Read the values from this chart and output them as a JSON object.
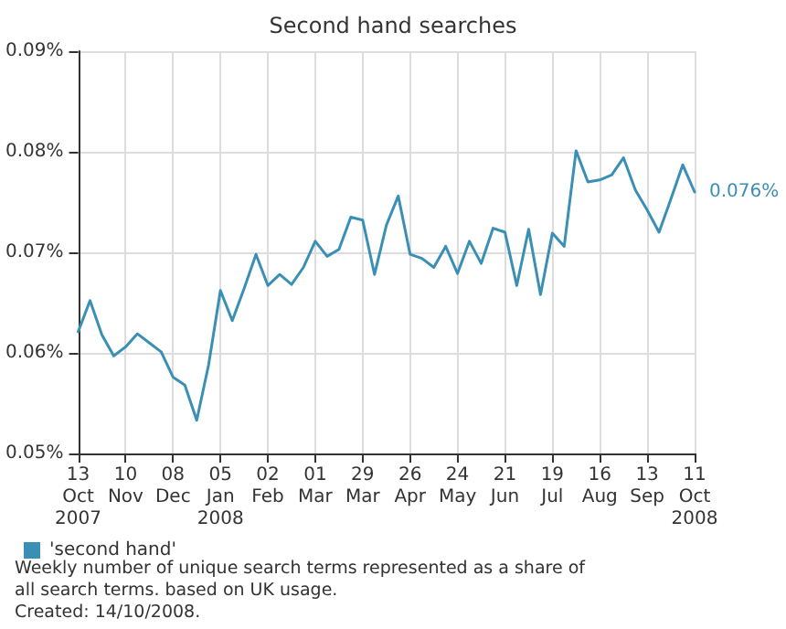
{
  "chart_data": {
    "type": "line",
    "title": "Second hand searches",
    "categories": [
      "13\nOct\n2007",
      null,
      null,
      null,
      "10\nNov",
      null,
      null,
      null,
      "08\nDec",
      null,
      null,
      null,
      "05\nJan\n2008",
      null,
      null,
      null,
      "02\nFeb",
      null,
      null,
      null,
      "01\nMar",
      null,
      null,
      null,
      "29\nMar",
      null,
      null,
      null,
      "26\nApr",
      null,
      null,
      null,
      "24\nMay",
      null,
      null,
      null,
      "21\nJun",
      null,
      null,
      null,
      "19\nJul",
      null,
      null,
      null,
      "16\nAug",
      null,
      null,
      null,
      "13\nSep",
      null,
      null,
      null,
      "11\nOct\n2008"
    ],
    "series": [
      {
        "name": "'second hand'",
        "color": "#3a8fb5",
        "values": [
          0.0621,
          0.0652,
          0.0618,
          0.0597,
          0.0606,
          0.0619,
          0.061,
          0.0601,
          0.0576,
          0.0568,
          0.0533,
          0.0588,
          0.0662,
          0.0632,
          0.0664,
          0.0698,
          0.0667,
          0.0678,
          0.0668,
          0.0685,
          0.0711,
          0.0696,
          0.0703,
          0.0735,
          0.0732,
          0.0678,
          0.0727,
          0.0756,
          0.0698,
          0.0694,
          0.0685,
          0.0706,
          0.0679,
          0.0711,
          0.0689,
          0.0724,
          0.072,
          0.0667,
          0.0723,
          0.0658,
          0.0719,
          0.0706,
          0.0801,
          0.077,
          0.0772,
          0.0777,
          0.0794,
          0.0762,
          0.0742,
          0.072,
          0.0753,
          0.0787,
          0.076
        ],
        "value_labels": [
          null,
          null,
          null,
          null,
          null,
          null,
          null,
          null,
          null,
          null,
          null,
          null,
          null,
          null,
          null,
          null,
          null,
          null,
          null,
          null,
          null,
          null,
          null,
          null,
          null,
          null,
          null,
          null,
          null,
          null,
          null,
          null,
          null,
          null,
          null,
          null,
          null,
          null,
          null,
          null,
          null,
          null,
          null,
          null,
          null,
          null,
          null,
          null,
          null,
          null,
          null,
          null,
          "0.076%"
        ]
      }
    ],
    "ylim": [
      0.05,
      0.09
    ],
    "yticks": [
      {
        "value": 0.05,
        "label": "0.05%"
      },
      {
        "value": 0.06,
        "label": "0.06%"
      },
      {
        "value": 0.07,
        "label": "0.07%"
      },
      {
        "value": 0.08,
        "label": "0.08%"
      },
      {
        "value": 0.09,
        "label": "0.09%"
      }
    ],
    "grid": true,
    "legend": "bottom left",
    "marker": "none",
    "line_style": "solid",
    "annotations": [
      "Weekly number of unique search terms represented as a share of\nall search terms. based on UK usage.",
      "Created: 14/10/2008."
    ]
  }
}
